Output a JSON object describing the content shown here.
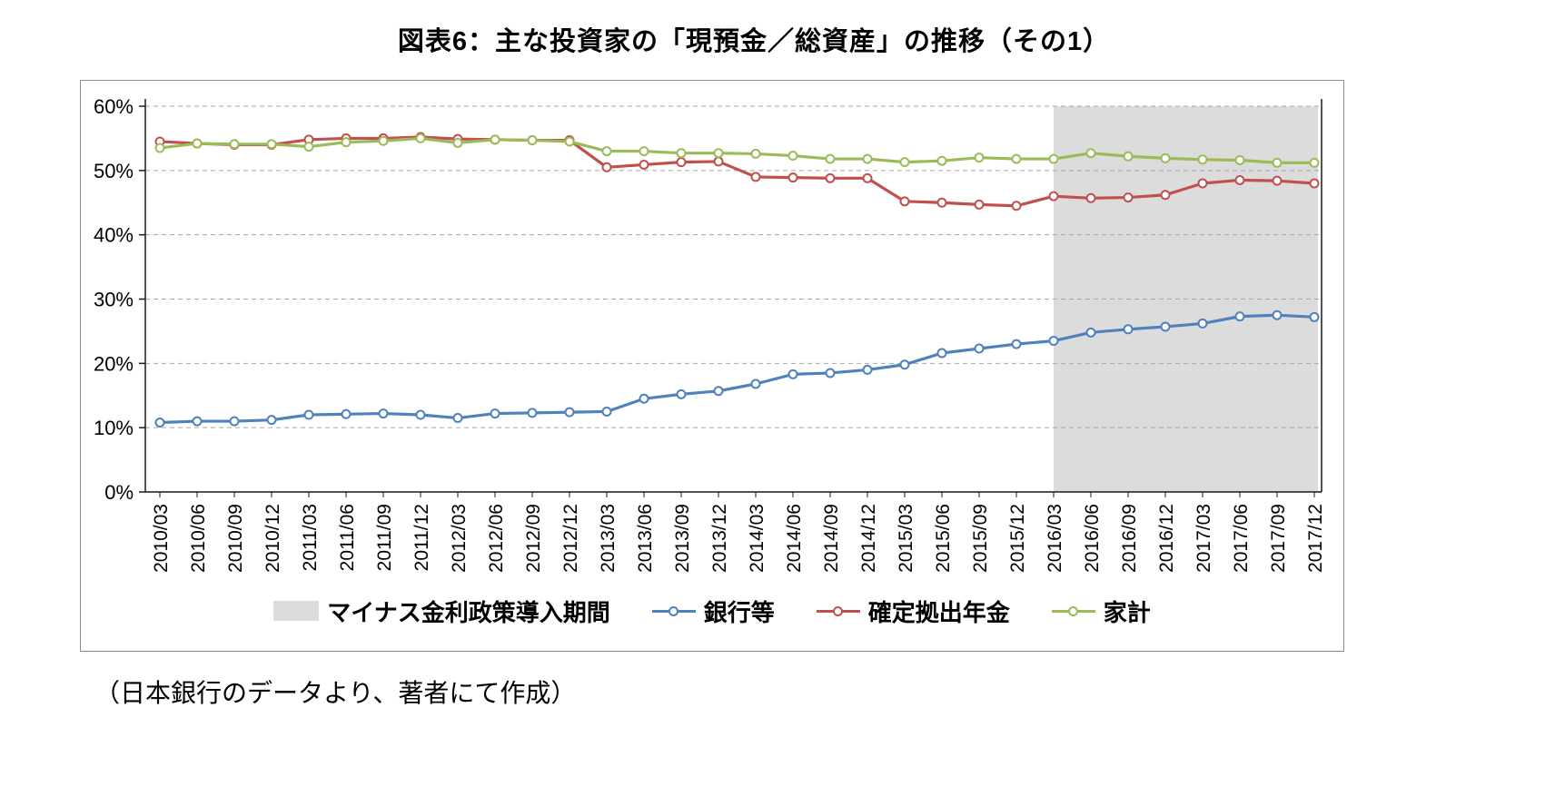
{
  "title": "図表6：主な投資家の「現預金／総資産」の推移（その1）",
  "caption": "（日本銀行のデータより、著者にて作成）",
  "legend": {
    "items": [
      {
        "label": "マイナス金利政策導入期間",
        "type": "area",
        "color": "#dcdcdc"
      },
      {
        "label": "銀行等",
        "type": "line",
        "color": "#4f81bd"
      },
      {
        "label": "確定拠出年金",
        "type": "line",
        "color": "#c0504d"
      },
      {
        "label": "家計",
        "type": "line",
        "color": "#9bbb59"
      }
    ]
  },
  "chart_data": {
    "type": "line",
    "title": "図表6：主な投資家の「現預金／総資産」の推移（その1）",
    "categories": [
      "2010/03",
      "2010/06",
      "2010/09",
      "2010/12",
      "2011/03",
      "2011/06",
      "2011/09",
      "2011/12",
      "2012/03",
      "2012/06",
      "2012/09",
      "2012/12",
      "2013/03",
      "2013/06",
      "2013/09",
      "2013/12",
      "2014/03",
      "2014/06",
      "2014/09",
      "2014/12",
      "2015/03",
      "2015/06",
      "2015/09",
      "2015/12",
      "2016/03",
      "2016/06",
      "2016/09",
      "2016/12",
      "2017/03",
      "2017/06",
      "2017/09",
      "2017/12"
    ],
    "series": [
      {
        "name": "銀行等",
        "color": "#4f81bd",
        "values": [
          10.8,
          11.0,
          11.0,
          11.2,
          12.0,
          12.1,
          12.2,
          12.0,
          11.5,
          12.2,
          12.3,
          12.4,
          12.5,
          14.5,
          15.2,
          15.7,
          16.8,
          18.3,
          18.5,
          19.0,
          19.8,
          21.6,
          22.3,
          23.0,
          23.5,
          24.8,
          25.3,
          25.7,
          26.2,
          27.3,
          27.5,
          27.2
        ]
      },
      {
        "name": "確定拠出年金",
        "color": "#c0504d",
        "values": [
          54.5,
          54.2,
          54.0,
          54.0,
          54.8,
          55.0,
          55.0,
          55.2,
          54.9,
          54.8,
          54.7,
          54.7,
          50.5,
          50.9,
          51.3,
          51.4,
          49.0,
          48.9,
          48.8,
          48.8,
          45.2,
          45.0,
          44.7,
          44.5,
          46.0,
          45.7,
          45.8,
          46.2,
          48.0,
          48.5,
          48.4,
          48.0
        ]
      },
      {
        "name": "家計",
        "color": "#9bbb59",
        "values": [
          53.5,
          54.2,
          54.1,
          54.1,
          53.7,
          54.4,
          54.6,
          55.0,
          54.3,
          54.8,
          54.7,
          54.5,
          53.0,
          53.0,
          52.7,
          52.7,
          52.6,
          52.3,
          51.8,
          51.8,
          51.3,
          51.5,
          52.0,
          51.8,
          51.8,
          52.7,
          52.2,
          51.9,
          51.7,
          51.6,
          51.2,
          51.2
        ]
      }
    ],
    "ylim": [
      0,
      60
    ],
    "ytick_values": [
      0,
      10,
      20,
      30,
      40,
      50,
      60
    ],
    "ytick_labels": [
      "0%",
      "10%",
      "20%",
      "30%",
      "40%",
      "50%",
      "60%"
    ],
    "grid": "horizontal dashed",
    "legend_position": "bottom",
    "shaded_region": {
      "label": "マイナス金利政策導入期間",
      "from": "2016/03",
      "to": "2017/12",
      "color": "#dcdcdc"
    }
  }
}
